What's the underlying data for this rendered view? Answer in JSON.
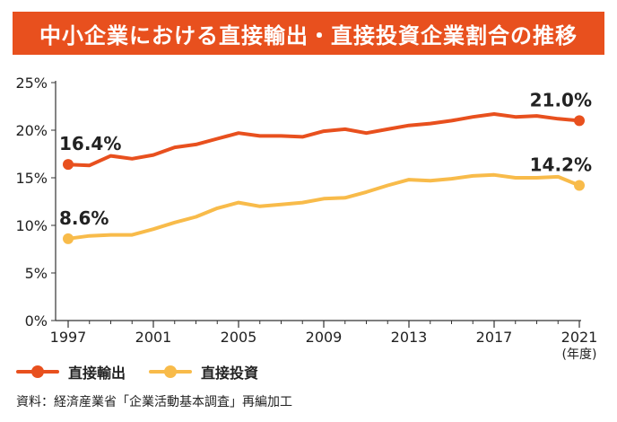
{
  "title": "中小企業における直接輸出・直接投資企業割合の推移",
  "source": "資料：経済産業省「企業活動基本調査」再編加工",
  "colors": {
    "title_bg": "#e8501e",
    "export": "#e8501e",
    "investment": "#f8bb4a",
    "axis": "#333333"
  },
  "chart_data": {
    "type": "line",
    "title": "中小企業における直接輸出・直接投資企業割合の推移",
    "xlabel": "",
    "x_unit_label": "(年度)",
    "ylabel": "",
    "xlim": [
      1997,
      2021
    ],
    "ylim": [
      0,
      25
    ],
    "x_ticks": [
      1997,
      2001,
      2005,
      2009,
      2013,
      2017,
      2021
    ],
    "y_ticks": [
      0,
      5,
      10,
      15,
      20,
      25
    ],
    "y_tick_labels": [
      "0%",
      "5%",
      "10%",
      "15%",
      "20%",
      "25%"
    ],
    "grid": false,
    "legend_position": "bottom-left",
    "x": [
      1997,
      1998,
      1999,
      2000,
      2001,
      2002,
      2003,
      2004,
      2005,
      2006,
      2007,
      2008,
      2009,
      2010,
      2011,
      2012,
      2013,
      2014,
      2015,
      2016,
      2017,
      2018,
      2019,
      2020,
      2021
    ],
    "series": [
      {
        "name": "直接輸出",
        "color": "#e8501e",
        "values": [
          16.4,
          16.3,
          17.3,
          17.0,
          17.4,
          18.2,
          18.5,
          19.1,
          19.7,
          19.4,
          19.4,
          19.3,
          19.9,
          20.1,
          19.7,
          20.1,
          20.5,
          20.7,
          21.0,
          21.4,
          21.7,
          21.4,
          21.5,
          21.2,
          21.0
        ],
        "labels": [
          {
            "index": 0,
            "text": "16.4%"
          },
          {
            "index": 24,
            "text": "21.0%"
          }
        ]
      },
      {
        "name": "直接投資",
        "color": "#f8bb4a",
        "values": [
          8.6,
          8.9,
          9.0,
          9.0,
          9.6,
          10.3,
          10.9,
          11.8,
          12.4,
          12.0,
          12.2,
          12.4,
          12.8,
          12.9,
          13.5,
          14.2,
          14.8,
          14.7,
          14.9,
          15.2,
          15.3,
          15.0,
          15.0,
          15.1,
          14.2
        ],
        "labels": [
          {
            "index": 0,
            "text": "8.6%"
          },
          {
            "index": 24,
            "text": "14.2%"
          }
        ]
      }
    ]
  }
}
